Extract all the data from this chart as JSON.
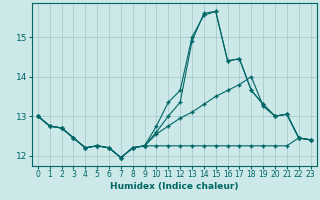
{
  "xlabel": "Humidex (Indice chaleur)",
  "background_color": "#cce8e8",
  "grid_color": "#aacccc",
  "line_color": "#006666",
  "xlim": [
    -0.5,
    23.5
  ],
  "ylim": [
    11.75,
    15.85
  ],
  "yticks": [
    12,
    13,
    14,
    15
  ],
  "xticks": [
    0,
    1,
    2,
    3,
    4,
    5,
    6,
    7,
    8,
    9,
    10,
    11,
    12,
    13,
    14,
    15,
    16,
    17,
    18,
    19,
    20,
    21,
    22,
    23
  ],
  "series_spike_x": [
    0,
    1,
    2,
    3,
    4,
    5,
    6,
    7,
    8,
    9,
    10,
    11,
    12,
    13,
    14,
    15,
    16,
    17,
    18,
    19,
    20,
    21,
    22,
    23
  ],
  "series_spike_y": [
    13.0,
    12.75,
    12.7,
    12.45,
    12.2,
    12.25,
    12.2,
    11.95,
    12.2,
    12.25,
    12.75,
    13.35,
    13.65,
    15.0,
    15.55,
    15.65,
    14.4,
    14.45,
    13.65,
    13.3,
    13.0,
    13.05,
    12.45,
    12.4
  ],
  "series_spike2_x": [
    0,
    1,
    2,
    3,
    4,
    5,
    6,
    7,
    8,
    9,
    10,
    11,
    12,
    13,
    14,
    15,
    16,
    17,
    18,
    19,
    20,
    21,
    22,
    23
  ],
  "series_spike2_y": [
    13.0,
    12.75,
    12.7,
    12.45,
    12.2,
    12.25,
    12.2,
    11.95,
    12.2,
    12.25,
    12.6,
    13.0,
    13.35,
    14.9,
    15.6,
    15.65,
    14.4,
    14.45,
    13.65,
    13.3,
    13.0,
    13.05,
    12.45,
    12.4
  ],
  "series_rising_x": [
    0,
    1,
    2,
    3,
    4,
    5,
    6,
    7,
    8,
    9,
    10,
    11,
    12,
    13,
    14,
    15,
    16,
    17,
    18,
    19,
    20,
    21,
    22,
    23
  ],
  "series_rising_y": [
    13.0,
    12.75,
    12.7,
    12.45,
    12.2,
    12.25,
    12.2,
    11.95,
    12.2,
    12.25,
    12.55,
    12.75,
    12.95,
    13.1,
    13.3,
    13.5,
    13.65,
    13.8,
    14.0,
    13.25,
    13.0,
    13.05,
    12.45,
    12.4
  ],
  "series_flat_x": [
    0,
    1,
    2,
    3,
    4,
    5,
    6,
    7,
    8,
    9,
    10,
    11,
    12,
    13,
    14,
    15,
    16,
    17,
    18,
    19,
    20,
    21,
    22,
    23
  ],
  "series_flat_y": [
    13.0,
    12.75,
    12.7,
    12.45,
    12.2,
    12.25,
    12.2,
    11.95,
    12.2,
    12.25,
    12.25,
    12.25,
    12.25,
    12.25,
    12.25,
    12.25,
    12.25,
    12.25,
    12.25,
    12.25,
    12.25,
    12.25,
    12.45,
    12.4
  ]
}
